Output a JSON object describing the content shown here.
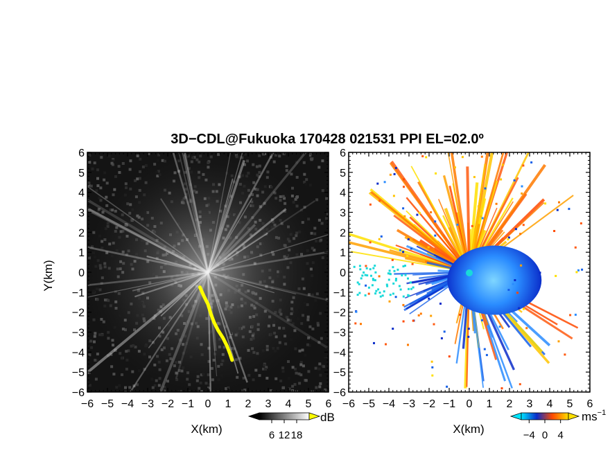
{
  "chart_data": [
    {
      "type": "heatmap",
      "panel": "left",
      "title": "3D−CDL@Fukuoka 170428 021531 PPI EL=02.0º",
      "xlabel": "X(km)",
      "ylabel": "Y(km)",
      "xlim": [
        -6,
        6
      ],
      "ylim": [
        -6,
        6
      ],
      "xticks": [
        "−6",
        "−5",
        "−4",
        "−3",
        "−2",
        "−1",
        "0",
        "1",
        "2",
        "3",
        "4",
        "5",
        "6"
      ],
      "yticks": [
        "−6",
        "−5",
        "−4",
        "−3",
        "−2",
        "−1",
        "0",
        "1",
        "2",
        "3",
        "4",
        "5",
        "6"
      ],
      "colorbar": {
        "unit": "dB",
        "ticks": [
          "6",
          "12",
          "18"
        ],
        "range": [
          0,
          24
        ],
        "colors": [
          "#000000",
          "#ffffff"
        ],
        "overflow_color": "#ffff00"
      },
      "highlight_path": [
        [
          -0.4,
          -0.75
        ],
        [
          -0.2,
          -1.2
        ],
        [
          0.0,
          -1.6
        ],
        [
          0.15,
          -2.1
        ],
        [
          0.3,
          -2.5
        ],
        [
          0.5,
          -2.9
        ],
        [
          0.75,
          -3.3
        ],
        [
          0.95,
          -3.7
        ],
        [
          1.1,
          -4.1
        ],
        [
          1.2,
          -4.4
        ]
      ],
      "highlight_color": "#ffff00",
      "grid": false
    },
    {
      "type": "heatmap",
      "panel": "right",
      "xlabel": "X(km)",
      "xlim": [
        -6,
        6
      ],
      "ylim": [
        -6,
        6
      ],
      "xticks": [
        "−6",
        "−5",
        "−4",
        "−3",
        "−2",
        "−1",
        "0",
        "1",
        "2",
        "3",
        "4",
        "5",
        "6"
      ],
      "yticks": [
        "−6",
        "−5",
        "−4",
        "−3",
        "−2",
        "−1",
        "0",
        "1",
        "2",
        "3",
        "4",
        "5",
        "6"
      ],
      "colorbar": {
        "unit": "ms",
        "unit_exponent": "−1",
        "ticks": [
          "−4",
          "0",
          "4"
        ],
        "range": [
          -6,
          6
        ],
        "colors": [
          "#00e5ff",
          "#0a2cc9",
          "#ff4a00",
          "#ffe000"
        ]
      },
      "center_marker_color": "#19d9d9",
      "grid": false
    }
  ]
}
